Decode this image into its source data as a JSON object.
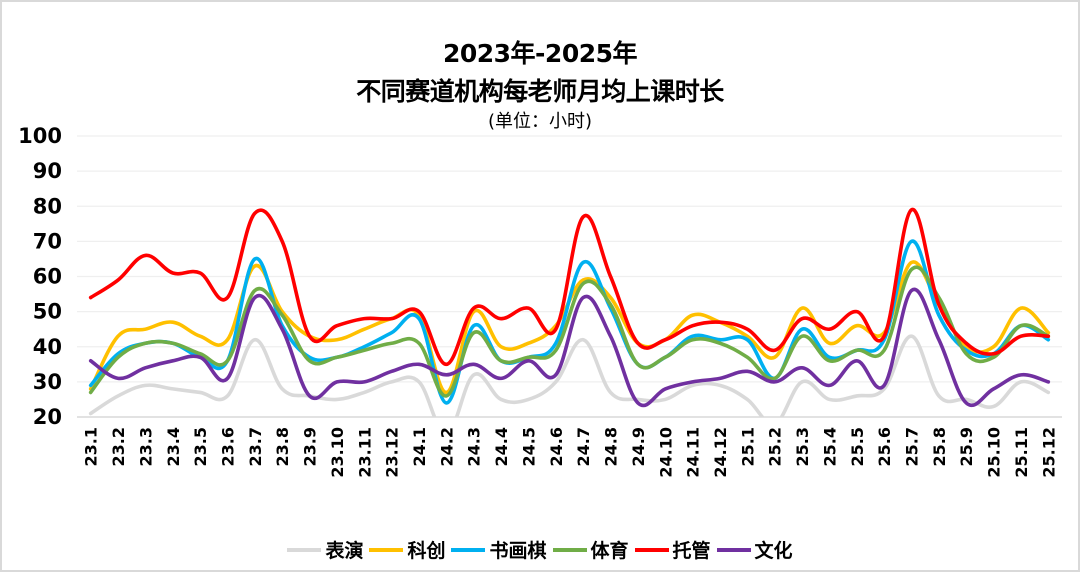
{
  "title": {
    "line1": "2023年-2025年",
    "line2": "不同赛道机构每老师月均上课时长",
    "unit": "(单位：小时)"
  },
  "chart_data": {
    "type": "line",
    "title": "2023年-2025年 不同赛道机构每老师月均上课时长",
    "subtitle": "(单位：小时)",
    "xlabel": "",
    "ylabel": "小时",
    "ylim": [
      20,
      100
    ],
    "yticks": [
      20,
      30,
      40,
      50,
      60,
      70,
      80,
      90,
      100
    ],
    "grid": true,
    "legend_position": "bottom",
    "categories": [
      "23.1",
      "23.2",
      "23.3",
      "23.4",
      "23.5",
      "23.6",
      "23.7",
      "23.8",
      "23.9",
      "23.10",
      "23.11",
      "23.12",
      "24.1",
      "24.2",
      "24.3",
      "24.4",
      "24.5",
      "24.6",
      "24.7",
      "24.8",
      "24.9",
      "24.10",
      "24.11",
      "24.12",
      "25.1",
      "25.2",
      "25.3",
      "25.4",
      "25.5",
      "25.6",
      "25.7",
      "25.8",
      "25.9",
      "25.10",
      "25.11",
      "25.12"
    ],
    "series": [
      {
        "name": "表演",
        "color": "#d9d9d9",
        "values": [
          21,
          26,
          29,
          28,
          27,
          26,
          42,
          28,
          26,
          25,
          27,
          30,
          30,
          15,
          32,
          25,
          25,
          30,
          42,
          27,
          25,
          25,
          29,
          29,
          25,
          18,
          30,
          25,
          26,
          28,
          43,
          26,
          25,
          23,
          30,
          27
        ]
      },
      {
        "name": "科创",
        "color": "#ffc000",
        "values": [
          28,
          43,
          45,
          47,
          43,
          42,
          63,
          50,
          43,
          42,
          45,
          48,
          49,
          27,
          50,
          40,
          41,
          46,
          59,
          54,
          41,
          42,
          49,
          47,
          43,
          37,
          51,
          41,
          46,
          44,
          64,
          52,
          40,
          40,
          51,
          44
        ]
      },
      {
        "name": "书画棋",
        "color": "#00b0f0",
        "values": [
          29,
          38,
          41,
          41,
          37,
          36,
          65,
          46,
          37,
          37,
          40,
          44,
          48,
          24,
          46,
          36,
          37,
          41,
          64,
          51,
          35,
          37,
          43,
          42,
          42,
          31,
          45,
          37,
          39,
          42,
          70,
          49,
          39,
          38,
          46,
          42
        ]
      },
      {
        "name": "体育",
        "color": "#70ad47",
        "values": [
          27,
          37,
          41,
          41,
          38,
          36,
          56,
          49,
          36,
          37,
          39,
          41,
          41,
          26,
          44,
          36,
          37,
          39,
          58,
          52,
          35,
          37,
          42,
          41,
          37,
          31,
          43,
          36,
          39,
          39,
          62,
          54,
          38,
          37,
          46,
          43
        ]
      },
      {
        "name": "托管",
        "color": "#ff0000",
        "values": [
          54,
          59,
          66,
          61,
          61,
          54,
          78,
          70,
          43,
          46,
          48,
          48,
          50,
          35,
          51,
          48,
          51,
          45,
          77,
          60,
          41,
          42,
          46,
          47,
          45,
          39,
          48,
          45,
          50,
          43,
          79,
          52,
          41,
          38,
          43,
          43
        ]
      },
      {
        "name": "文化",
        "color": "#7030a0",
        "values": [
          36,
          31,
          34,
          36,
          37,
          31,
          54,
          45,
          26,
          30,
          30,
          33,
          35,
          32,
          35,
          31,
          36,
          32,
          54,
          43,
          24,
          28,
          30,
          31,
          33,
          30,
          34,
          29,
          36,
          29,
          56,
          42,
          24,
          28,
          32,
          30
        ]
      }
    ]
  },
  "legend": [
    "表演",
    "科创",
    "书画棋",
    "体育",
    "托管",
    "文化"
  ]
}
